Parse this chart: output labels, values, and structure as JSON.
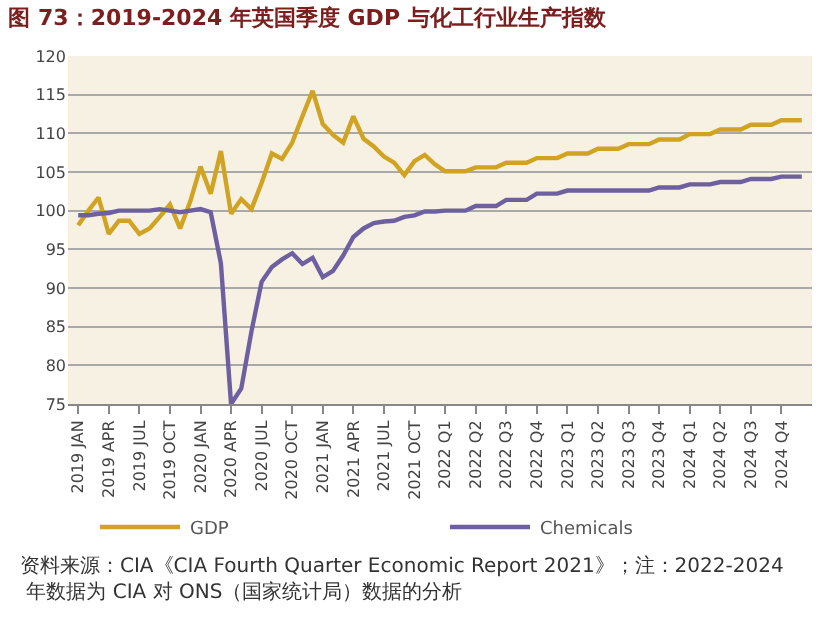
{
  "chart_data": {
    "type": "line",
    "title": "图 73：2019-2024 年英国季度 GDP 与化工行业生产指数",
    "categories": [
      "2019 JAN",
      null,
      null,
      "2019 APR",
      null,
      null,
      "2019 JUL",
      null,
      null,
      "2019 OCT",
      null,
      null,
      "2020 JAN",
      null,
      null,
      "2020 APR",
      null,
      null,
      "2020 JUL",
      null,
      null,
      "2020 OCT",
      null,
      null,
      "2021 JAN",
      null,
      null,
      "2021 APR",
      null,
      null,
      "2021 JUL",
      null,
      null,
      "2021 OCT",
      null,
      null,
      "2022 Q1",
      null,
      null,
      "2022 Q2",
      null,
      null,
      "2022 Q3",
      null,
      null,
      "2022 Q4",
      null,
      null,
      "2023 Q1",
      null,
      null,
      "2023 Q2",
      null,
      null,
      "2023 Q3",
      null,
      null,
      "2023 Q4",
      null,
      null,
      "2024 Q1",
      null,
      null,
      "2024 Q2",
      null,
      null,
      "2024 Q3",
      null,
      null,
      "2024 Q4",
      null,
      null
    ],
    "series": [
      {
        "name": "GDP",
        "color": "#d1a323",
        "values": [
          98.1,
          100,
          101.7,
          97,
          98.7,
          98.7,
          97,
          97.7,
          99.2,
          100.8,
          97.7,
          101.2,
          105.7,
          102.2,
          107.7,
          99.6,
          101.5,
          100.2,
          103.6,
          107.4,
          106.7,
          108.8,
          112.2,
          115.5,
          111.2,
          109.8,
          108.8,
          112.2,
          109.3,
          108.3,
          107,
          106.2,
          104.6,
          106.4,
          107.2,
          106,
          105.1,
          105.1,
          105.1,
          105.6,
          105.6,
          105.6,
          106.2,
          106.2,
          106.2,
          106.8,
          106.8,
          106.8,
          107.4,
          107.4,
          107.4,
          108,
          108,
          108,
          108.6,
          108.6,
          108.6,
          109.2,
          109.2,
          109.2,
          109.9,
          109.9,
          109.9,
          110.5,
          110.5,
          110.5,
          111.1,
          111.1,
          111.1,
          111.7,
          111.7,
          111.7
        ]
      },
      {
        "name": "Chemicals",
        "color": "#6e5fa0",
        "values": [
          99.4,
          99.4,
          99.6,
          99.7,
          100,
          100,
          100,
          100,
          100.2,
          100,
          99.8,
          100,
          100.2,
          99.8,
          93.2,
          75,
          77,
          84.4,
          90.8,
          92.7,
          93.7,
          94.5,
          93.1,
          93.9,
          91.4,
          92.2,
          94.2,
          96.6,
          97.7,
          98.4,
          98.6,
          98.7,
          99.2,
          99.4,
          99.9,
          99.9,
          100,
          100,
          100,
          100.6,
          100.6,
          100.6,
          101.4,
          101.4,
          101.4,
          102.2,
          102.2,
          102.2,
          102.6,
          102.6,
          102.6,
          102.6,
          102.6,
          102.6,
          102.6,
          102.6,
          102.6,
          103,
          103,
          103,
          103.4,
          103.4,
          103.4,
          103.7,
          103.7,
          103.7,
          104.1,
          104.1,
          104.1,
          104.4,
          104.4,
          104.4
        ]
      }
    ],
    "ylim": [
      75,
      120
    ],
    "yticks": [
      75,
      80,
      85,
      90,
      95,
      100,
      105,
      110,
      115,
      120
    ],
    "grid": "y",
    "legend": "bottom",
    "marker": "none",
    "line_style": "solid",
    "annotations": [
      "资料来源：CIA《CIA Fourth Quarter Economic Report 2021》；注：2022-2024 年数据为 CIA 对 ONS（国家统计局）数据的分析"
    ]
  }
}
